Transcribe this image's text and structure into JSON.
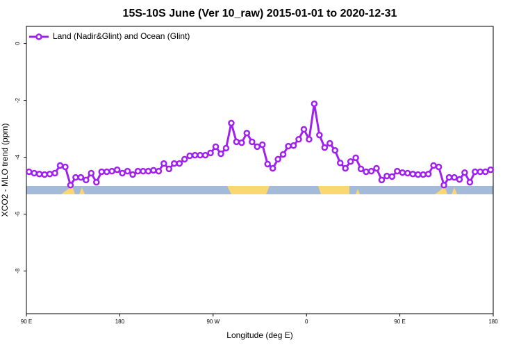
{
  "chart_data": {
    "type": "line",
    "title": "15S-10S June (Ver 10_raw)   2015-01-01 to 2020-12-31",
    "xlabel": "Longitude (deg E)",
    "ylabel": "XCO2 - MLO trend (ppm)",
    "xlim": [
      90,
      540
    ],
    "ylim": [
      0.6,
      -9.5
    ],
    "xticks": [
      {
        "value": 90,
        "label": "90 E"
      },
      180,
      {
        "value": 270,
        "label": "90 W"
      },
      {
        "value": 360,
        "label": "0"
      },
      {
        "value": 450,
        "label": "90 E"
      },
      {
        "value": 540,
        "label": "180"
      }
    ],
    "yticks": [
      0,
      -2,
      -4,
      -6,
      -8
    ],
    "legend": "upper left",
    "x": [
      92.5,
      97.5,
      102.5,
      107.5,
      112.5,
      117.5,
      122.5,
      127.5,
      132.5,
      137.5,
      142.5,
      147.5,
      152.5,
      157.5,
      162.5,
      167.5,
      172.5,
      177.5,
      182.5,
      187.5,
      192.5,
      197.5,
      202.5,
      207.5,
      212.5,
      217.5,
      222.5,
      227.5,
      232.5,
      237.5,
      242.5,
      247.5,
      252.5,
      257.5,
      262.5,
      267.5,
      272.5,
      277.5,
      282.5,
      287.5,
      292.5,
      297.5,
      302.5,
      307.5,
      312.5,
      317.5,
      322.5,
      327.5,
      332.5,
      337.5,
      342.5,
      347.5,
      352.5,
      357.5,
      362.5,
      367.5,
      372.5,
      377.5,
      382.5,
      387.5,
      392.5,
      397.5,
      402.5,
      407.5,
      412.5,
      417.5,
      422.5,
      427.5,
      432.5,
      437.5,
      442.5,
      447.5,
      452.5,
      457.5,
      462.5,
      467.5,
      472.5,
      477.5,
      482.5,
      487.5,
      492.5,
      497.5,
      502.5,
      507.5,
      512.5,
      517.5,
      522.5,
      527.5,
      532.5,
      537.5
    ],
    "series": [
      {
        "name": "Land (Nadir&Glint) and Ocean (Glint)",
        "color": "#a020f0",
        "values": [
          -4.51,
          -4.56,
          -4.59,
          -4.61,
          -4.59,
          -4.56,
          -4.29,
          -4.34,
          -4.98,
          -4.71,
          -4.71,
          -4.8,
          -4.56,
          -4.88,
          -4.51,
          -4.51,
          -4.49,
          -4.44,
          -4.56,
          -4.49,
          -4.61,
          -4.49,
          -4.49,
          -4.49,
          -4.46,
          -4.49,
          -4.22,
          -4.41,
          -4.22,
          -4.22,
          -4.07,
          -3.95,
          -3.93,
          -3.93,
          -3.93,
          -3.85,
          -3.63,
          -3.88,
          -3.68,
          -2.8,
          -3.46,
          -3.49,
          -3.15,
          -3.46,
          -3.63,
          -3.56,
          -4.24,
          -4.39,
          -4.07,
          -3.9,
          -3.61,
          -3.59,
          -3.37,
          -3.02,
          -3.37,
          -2.12,
          -3.22,
          -3.66,
          -3.51,
          -3.76,
          -4.2,
          -4.39,
          -4.15,
          -4.02,
          -4.41,
          -4.51,
          -4.49,
          -4.39,
          -4.8,
          -4.66,
          -4.68,
          -4.49,
          -4.54,
          -4.56,
          -4.59,
          -4.61,
          -4.61,
          -4.59,
          -4.29,
          -4.34,
          -4.98,
          -4.71,
          -4.71,
          -4.78,
          -4.54,
          -4.88,
          -4.51,
          -4.51,
          -4.51,
          -4.44
        ]
      }
    ]
  }
}
